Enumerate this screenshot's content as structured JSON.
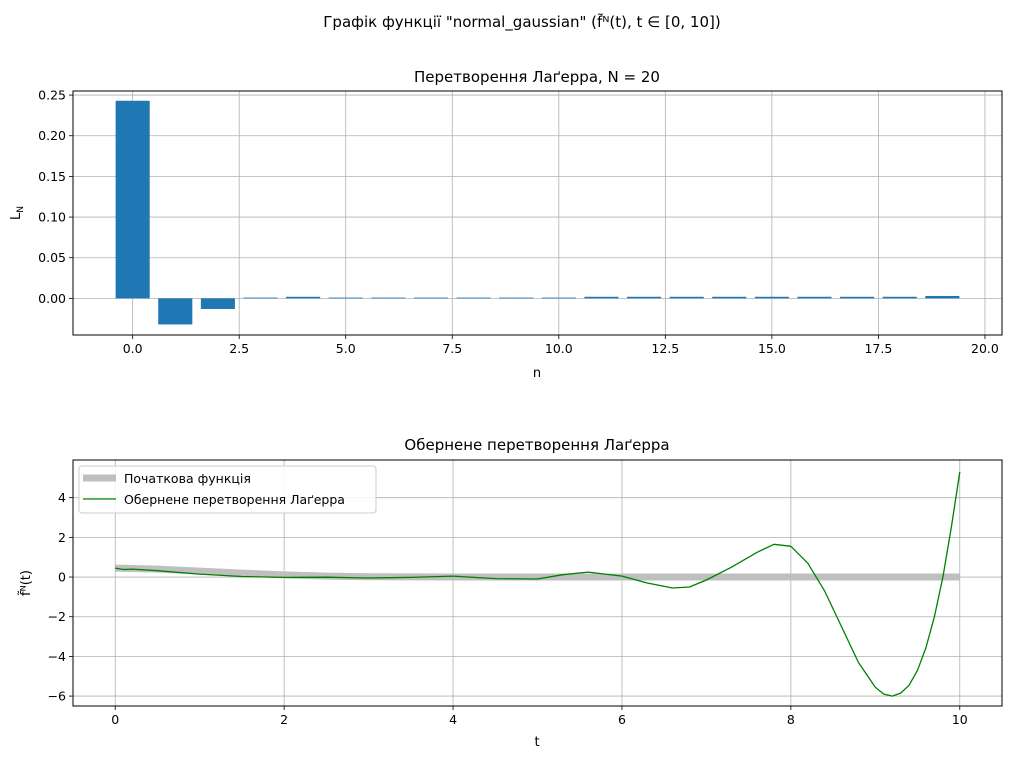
{
  "suptitle": "Графік функції \"normal_gaussian\" (f̃ᴺ(t), t ∈ [0, 10])",
  "chart_data": [
    {
      "type": "bar",
      "title": "Перетворення Лаґерра, N = 20",
      "xlabel": "n",
      "ylabel": "L_N",
      "xlim": [
        -1.4,
        20.4
      ],
      "ylim": [
        -0.045,
        0.255
      ],
      "x_ticks": [
        0.0,
        2.5,
        5.0,
        7.5,
        10.0,
        12.5,
        15.0,
        17.5,
        20.0
      ],
      "x_tick_labels": [
        "0.0",
        "2.5",
        "5.0",
        "7.5",
        "10.0",
        "12.5",
        "15.0",
        "17.5",
        "20.0"
      ],
      "y_ticks": [
        0.0,
        0.05,
        0.1,
        0.15,
        0.2,
        0.25
      ],
      "y_tick_labels": [
        "0.00",
        "0.05",
        "0.10",
        "0.15",
        "0.20",
        "0.25"
      ],
      "grid": true,
      "color": "#1f77b4",
      "categories": [
        0,
        1,
        2,
        3,
        4,
        5,
        6,
        7,
        8,
        9,
        10,
        11,
        12,
        13,
        14,
        15,
        16,
        17,
        18,
        19
      ],
      "values": [
        0.243,
        -0.032,
        -0.013,
        0.001,
        0.002,
        0.001,
        0.001,
        0.001,
        0.001,
        0.001,
        0.001,
        0.002,
        0.002,
        0.002,
        0.002,
        0.002,
        0.002,
        0.002,
        0.002,
        0.003
      ]
    },
    {
      "type": "line",
      "title": "Обернене перетворення Лаґерра",
      "xlabel": "t",
      "ylabel": "f̃ᴺ(t)",
      "xlim": [
        -0.5,
        10.5
      ],
      "ylim": [
        -6.5,
        5.9
      ],
      "x_ticks": [
        0,
        2,
        4,
        6,
        8,
        10
      ],
      "x_tick_labels": [
        "0",
        "2",
        "4",
        "6",
        "8",
        "10"
      ],
      "y_ticks": [
        -6,
        -4,
        -2,
        0,
        2,
        4
      ],
      "y_tick_labels": [
        "−6",
        "−4",
        "−2",
        "0",
        "2",
        "4"
      ],
      "grid": true,
      "legend_position": "upper-left",
      "series": [
        {
          "name": "Початкова функція",
          "color": "#bfbfbf",
          "x": [
            0,
            0.5,
            1,
            1.5,
            2,
            2.5,
            3,
            4,
            5,
            6,
            7,
            8,
            9,
            10
          ],
          "y": [
            0.45,
            0.4,
            0.3,
            0.2,
            0.11,
            0.05,
            0.02,
            0.0,
            0.0,
            0.0,
            0.0,
            0.0,
            0.0,
            0.0
          ]
        },
        {
          "name": "Обернене перетворення Лаґерра",
          "color": "#008000",
          "x": [
            0,
            0.1,
            0.2,
            0.5,
            1.0,
            1.5,
            2.0,
            2.5,
            3.0,
            3.5,
            4.0,
            4.5,
            5.0,
            5.3,
            5.6,
            6.0,
            6.3,
            6.6,
            6.8,
            7.0,
            7.3,
            7.6,
            7.8,
            8.0,
            8.2,
            8.4,
            8.6,
            8.8,
            9.0,
            9.1,
            9.2,
            9.3,
            9.4,
            9.5,
            9.6,
            9.7,
            9.8,
            9.9,
            10.0
          ],
          "y": [
            0.45,
            0.38,
            0.4,
            0.32,
            0.15,
            0.03,
            -0.02,
            -0.01,
            -0.05,
            -0.02,
            0.05,
            -0.08,
            -0.1,
            0.12,
            0.25,
            0.05,
            -0.3,
            -0.55,
            -0.5,
            -0.15,
            0.5,
            1.25,
            1.65,
            1.55,
            0.7,
            -0.7,
            -2.5,
            -4.3,
            -5.55,
            -5.9,
            -6.0,
            -5.85,
            -5.45,
            -4.7,
            -3.55,
            -2.0,
            0.0,
            2.5,
            5.3
          ]
        }
      ]
    }
  ]
}
